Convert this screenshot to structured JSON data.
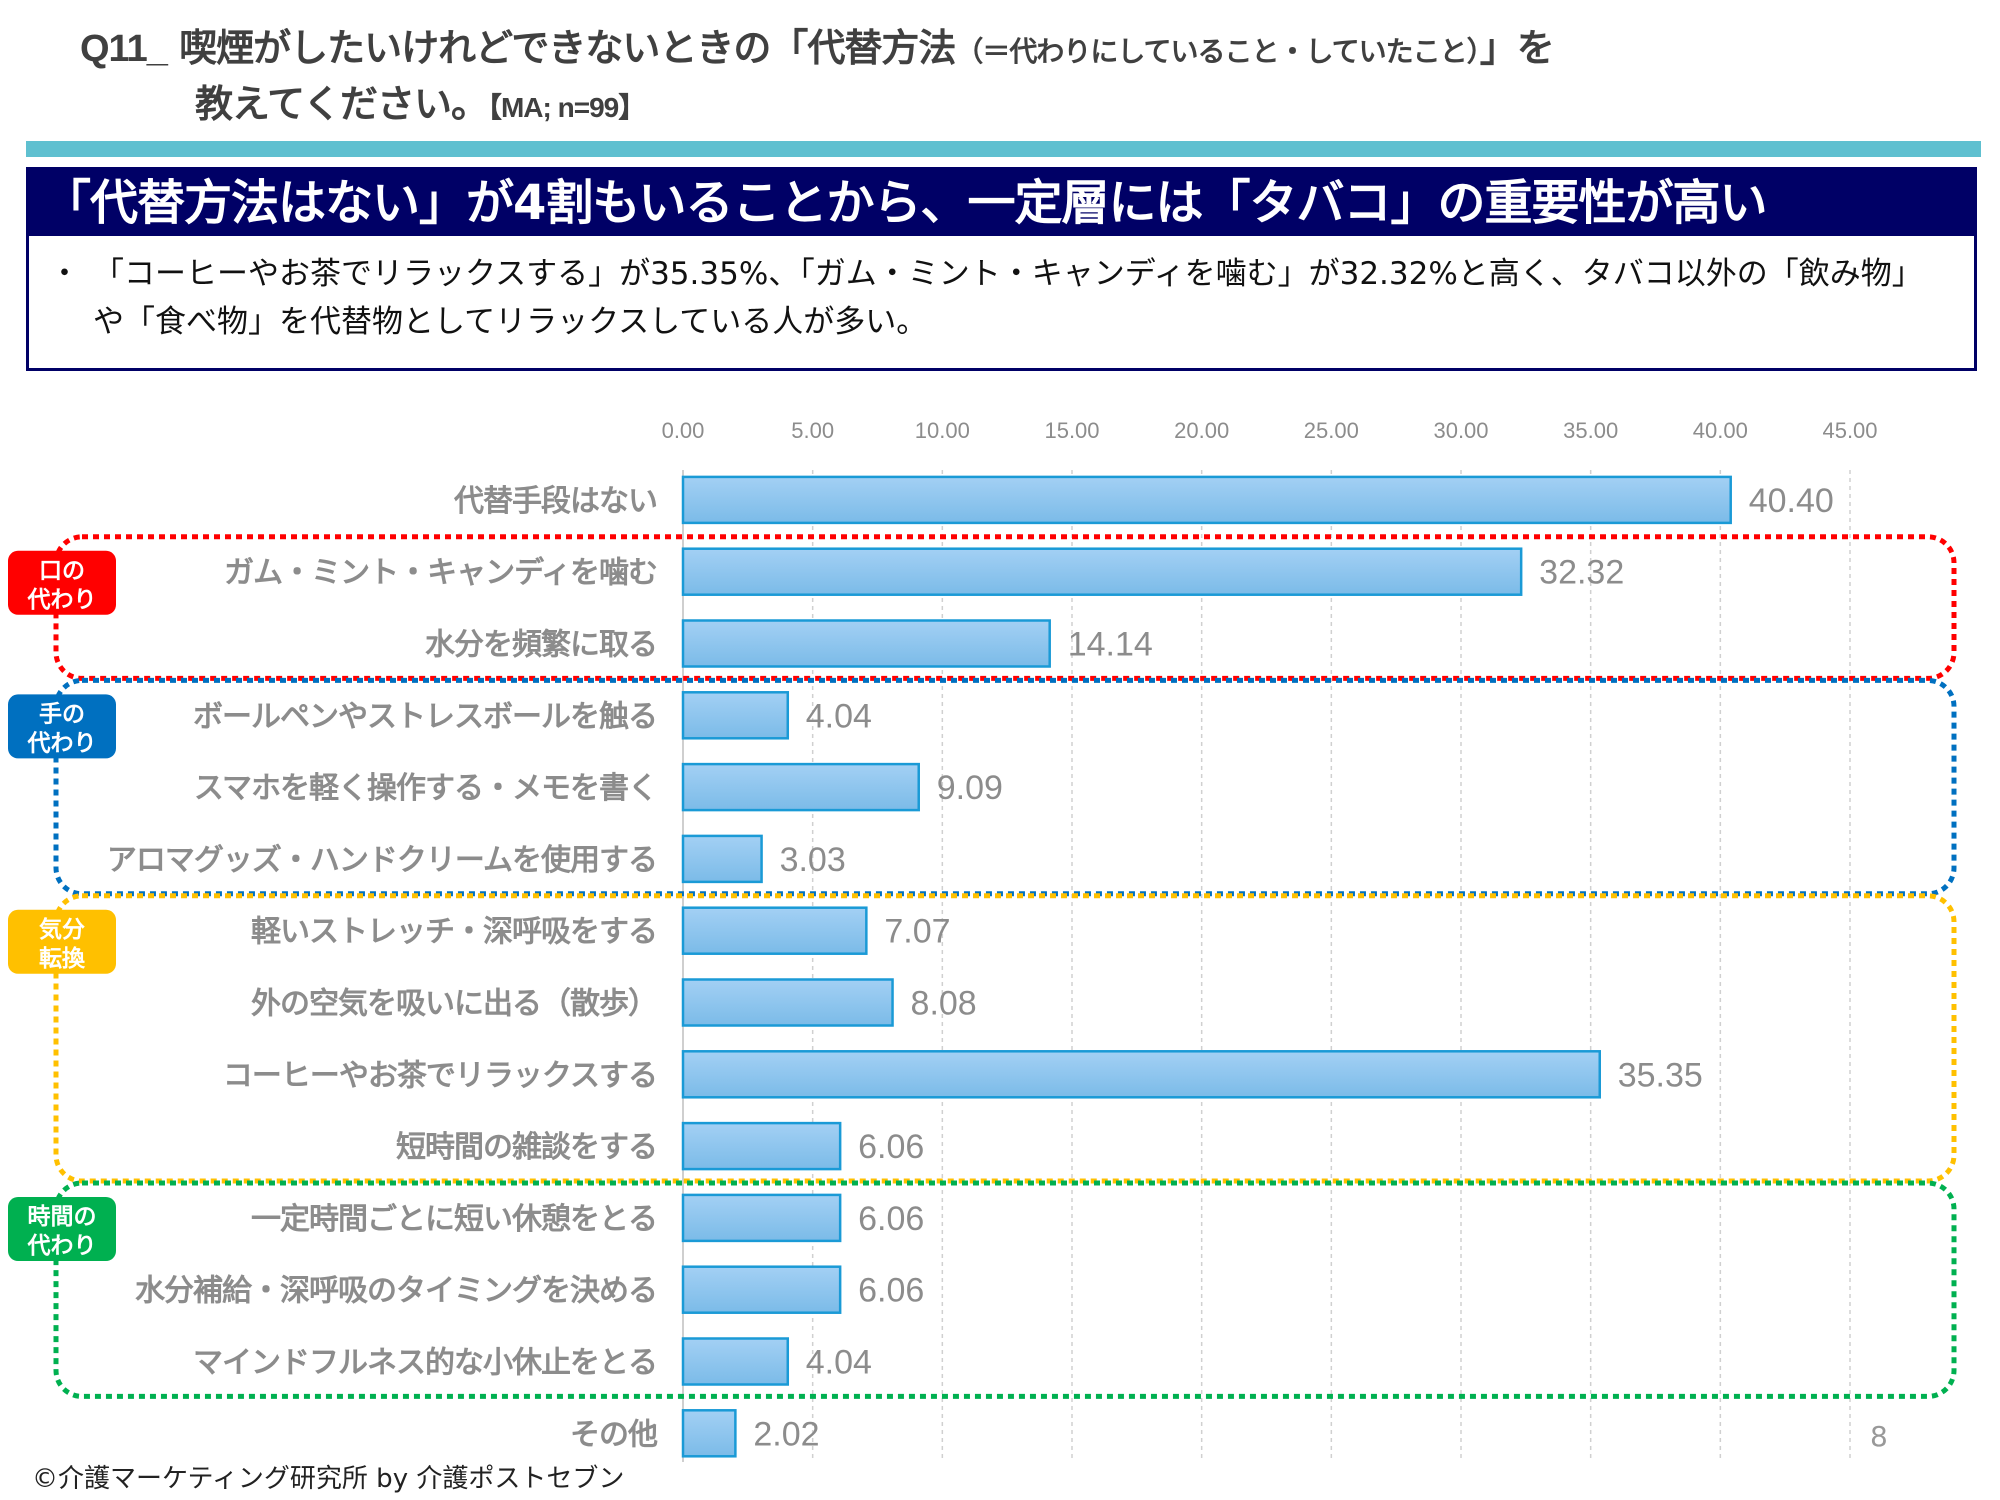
{
  "header": {
    "q_number": "Q11_",
    "q_text_main": "喫煙がしたいけれどできないときの「代替方法",
    "q_text_paren": "（＝代わりにしていること・していたこと）",
    "q_text_end": "」を",
    "q_text_line2": "教えてください。",
    "q_meta": "【MA; n=99】"
  },
  "headline": "「代替方法はない」が4割もいることから、一定層には「タバコ」の重要性が高い",
  "summary": {
    "bullet": "・",
    "text": "「コーヒーやお茶でリラックスする」が35.35%、「ガム・ミント・キャンディを噛む」が32.32%と高く、タバコ以外の「飲み物」や「食べ物」を代替物としてリラックスしている人が多い。"
  },
  "groups": [
    {
      "label_line1": "口の",
      "label_line2": "代わり",
      "color": "#ff0000",
      "rows": [
        1,
        2
      ]
    },
    {
      "label_line1": "手の",
      "label_line2": "代わり",
      "color": "#0070c0",
      "rows": [
        3,
        5
      ]
    },
    {
      "label_line1": "気分",
      "label_line2": "転換",
      "color": "#ffc000",
      "rows": [
        6,
        9
      ]
    },
    {
      "label_line1": "時間の",
      "label_line2": "代わり",
      "color": "#00b050",
      "rows": [
        10,
        12
      ]
    }
  ],
  "colors": {
    "bar_fill_top": "#a3d0f4",
    "bar_fill_bottom": "#7bbbe8",
    "bar_stroke": "#1a9ad6",
    "label": "#8c8c8c",
    "grid": "#d0d0d0"
  },
  "chart_data": {
    "type": "bar",
    "orientation": "horizontal",
    "categories": [
      "代替手段はない",
      "ガム・ミント・キャンディを噛む",
      "水分を頻繁に取る",
      "ボールペンやストレスボールを触る",
      "スマホを軽く操作する・メモを書く",
      "アロマグッズ・ハンドクリームを使用する",
      "軽いストレッチ・深呼吸をする",
      "外の空気を吸いに出る（散歩）",
      "コーヒーやお茶でリラックスする",
      "短時間の雑談をする",
      "一定時間ごとに短い休憩をとる",
      "水分補給・深呼吸のタイミングを決める",
      "マインドフルネス的な小休止をとる",
      "その他"
    ],
    "values": [
      40.4,
      32.32,
      14.14,
      4.04,
      9.09,
      3.03,
      7.07,
      8.08,
      35.35,
      6.06,
      6.06,
      6.06,
      4.04,
      2.02
    ],
    "value_labels": [
      "40.40",
      "32.32",
      "14.14",
      "4.04",
      "9.09",
      "3.03",
      "7.07",
      "8.08",
      "35.35",
      "6.06",
      "6.06",
      "6.06",
      "4.04",
      "2.02"
    ],
    "xlim": [
      0,
      45
    ],
    "ticks": [
      0,
      5,
      10,
      15,
      20,
      25,
      30,
      35,
      40,
      45
    ],
    "tick_labels": [
      "0.00",
      "5.00",
      "10.00",
      "15.00",
      "20.00",
      "25.00",
      "30.00",
      "35.00",
      "40.00",
      "45.00"
    ],
    "axis_position": "top",
    "grid": true,
    "title": "",
    "xlabel": "",
    "ylabel": ""
  },
  "footer": {
    "copyright": "©介護マーケティング研究所 by 介護ポストセブン",
    "page_number": "8"
  }
}
